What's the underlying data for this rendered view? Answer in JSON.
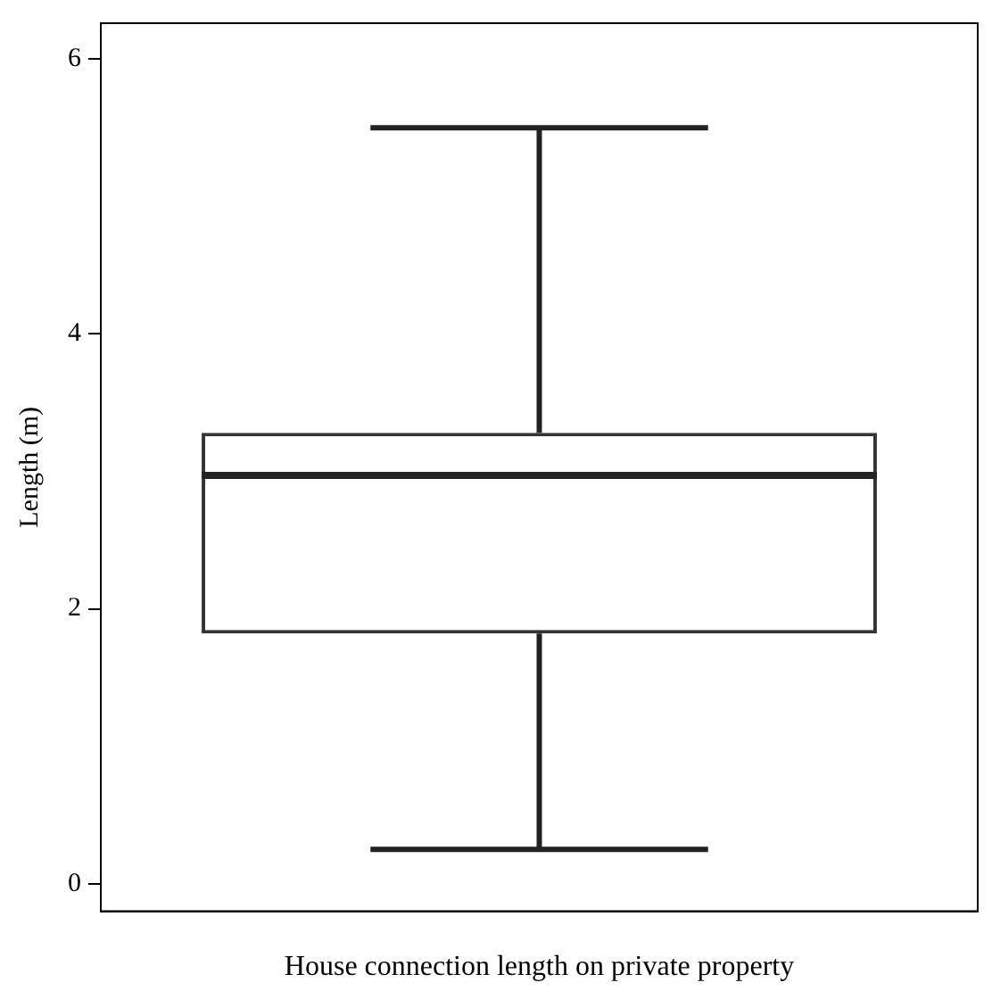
{
  "chart_data": {
    "type": "box",
    "categories": [
      null
    ],
    "xlabel": "House connection length on private property",
    "ylabel": "Length (m)",
    "boxes": [
      {
        "low": 0.25,
        "q1": 1.82,
        "median": 2.97,
        "q3": 3.28,
        "high": 5.5
      }
    ],
    "ylim": [
      -0.2,
      6.26
    ],
    "yticks": [
      0,
      2,
      4,
      6
    ],
    "grid": false,
    "legend": false
  }
}
